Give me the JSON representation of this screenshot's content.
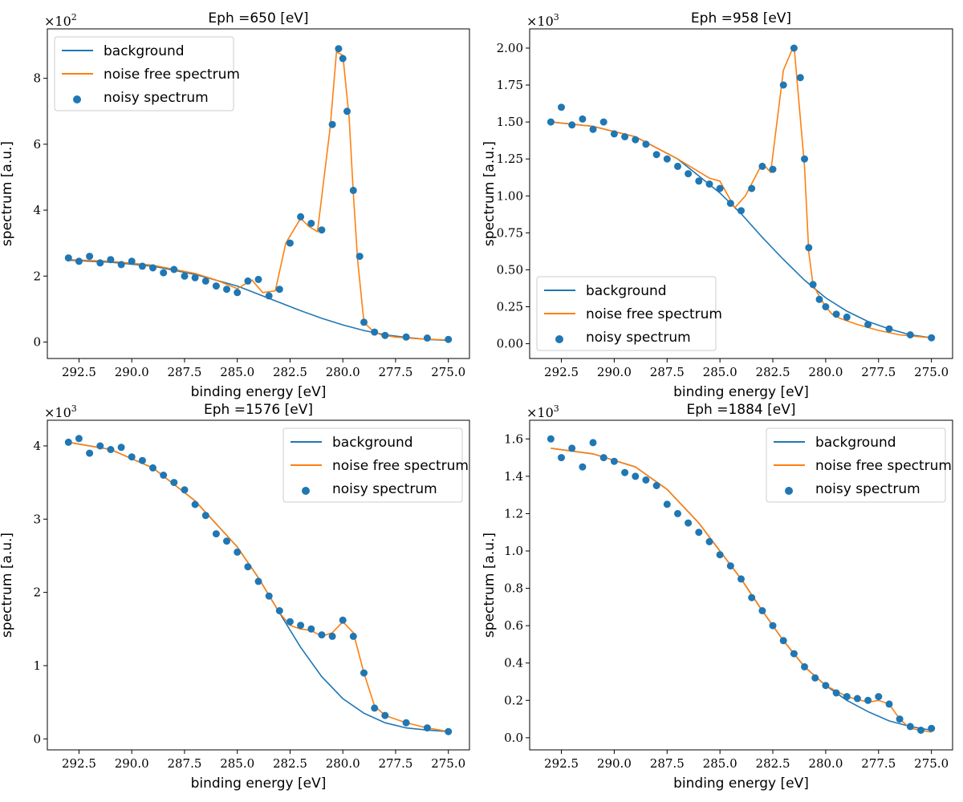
{
  "chart_data": [
    {
      "type": "line+scatter",
      "title": "Eph =650 [eV]",
      "xlabel": "binding energy [eV]",
      "ylabel": "spectrum [a.u.]",
      "multiplier_base": "×10",
      "multiplier_exp": "2",
      "xlim": [
        294.0,
        274.0
      ],
      "ylim": [
        -0.5,
        9.5
      ],
      "xticks": [
        "292.5",
        "290.0",
        "287.5",
        "285.0",
        "282.5",
        "280.0",
        "277.5",
        "275.0"
      ],
      "xtick_values": [
        292.5,
        290.0,
        287.5,
        285.0,
        282.5,
        280.0,
        277.5,
        275.0
      ],
      "yticks": [
        "0",
        "2",
        "4",
        "6",
        "8"
      ],
      "ytick_values": [
        0,
        2,
        4,
        6,
        8
      ],
      "legend": [
        "background",
        "noise free spectrum",
        "noisy spectrum"
      ],
      "legend_loc": "upper-left",
      "series": [
        {
          "name": "background",
          "color": "#1f77b4",
          "kind": "line",
          "x": [
            293.0,
            291.0,
            289.0,
            287.0,
            285.0,
            284.0,
            283.0,
            282.0,
            281.0,
            280.0,
            279.0,
            278.0,
            277.0,
            276.0,
            275.0
          ],
          "y": [
            2.48,
            2.42,
            2.3,
            2.05,
            1.7,
            1.45,
            1.2,
            0.95,
            0.72,
            0.52,
            0.35,
            0.22,
            0.14,
            0.08,
            0.05
          ]
        },
        {
          "name": "noise free spectrum",
          "color": "#ff7f0e",
          "kind": "line",
          "x": [
            293.0,
            291.0,
            289.0,
            287.0,
            286.0,
            285.0,
            284.3,
            283.8,
            283.2,
            282.7,
            282.0,
            281.6,
            281.2,
            280.6,
            280.3,
            280.0,
            279.7,
            279.5,
            279.3,
            279.0,
            278.6,
            278.2,
            277.5,
            276.5,
            275.0
          ],
          "y": [
            2.5,
            2.45,
            2.33,
            2.08,
            1.88,
            1.62,
            1.88,
            1.5,
            1.55,
            3.0,
            3.75,
            3.5,
            3.35,
            6.5,
            8.8,
            8.7,
            6.8,
            4.5,
            2.5,
            0.6,
            0.35,
            0.22,
            0.15,
            0.1,
            0.06
          ]
        },
        {
          "name": "noisy spectrum",
          "color": "#1f77b4",
          "kind": "scatter",
          "x": [
            293.0,
            292.5,
            292.0,
            291.5,
            291.0,
            290.5,
            290.0,
            289.5,
            289.0,
            288.5,
            288.0,
            287.5,
            287.0,
            286.5,
            286.0,
            285.5,
            285.0,
            284.5,
            284.0,
            283.5,
            283.0,
            282.5,
            282.0,
            281.5,
            281.0,
            280.5,
            280.2,
            280.0,
            279.8,
            279.5,
            279.2,
            279.0,
            278.5,
            278.0,
            277.0,
            276.0,
            275.0
          ],
          "y": [
            2.55,
            2.45,
            2.6,
            2.4,
            2.5,
            2.35,
            2.45,
            2.3,
            2.25,
            2.1,
            2.2,
            2.0,
            1.95,
            1.85,
            1.7,
            1.6,
            1.5,
            1.85,
            1.9,
            1.4,
            1.6,
            3.0,
            3.8,
            3.6,
            3.4,
            6.6,
            8.9,
            8.6,
            7.0,
            4.6,
            2.6,
            0.6,
            0.3,
            0.2,
            0.15,
            0.12,
            0.08
          ]
        }
      ]
    },
    {
      "type": "line+scatter",
      "title": "Eph =958 [eV]",
      "xlabel": "binding energy [eV]",
      "ylabel": "spectrum [a.u.]",
      "multiplier_base": "×10",
      "multiplier_exp": "3",
      "xlim": [
        294.0,
        274.0
      ],
      "ylim": [
        -0.1,
        2.13
      ],
      "xticks": [
        "292.5",
        "290.0",
        "287.5",
        "285.0",
        "282.5",
        "280.0",
        "277.5",
        "275.0"
      ],
      "xtick_values": [
        292.5,
        290.0,
        287.5,
        285.0,
        282.5,
        280.0,
        277.5,
        275.0
      ],
      "yticks": [
        "0.00",
        "0.25",
        "0.50",
        "0.75",
        "1.00",
        "1.25",
        "1.50",
        "1.75",
        "2.00"
      ],
      "ytick_values": [
        0.0,
        0.25,
        0.5,
        0.75,
        1.0,
        1.25,
        1.5,
        1.75,
        2.0
      ],
      "legend": [
        "background",
        "noise free spectrum",
        "noisy spectrum"
      ],
      "legend_loc": "lower-left",
      "series": [
        {
          "name": "background",
          "color": "#1f77b4",
          "kind": "line",
          "x": [
            293.0,
            291.0,
            289.0,
            287.0,
            285.0,
            284.0,
            283.0,
            282.0,
            281.0,
            280.0,
            279.0,
            278.0,
            277.0,
            276.0,
            275.0
          ],
          "y": [
            1.5,
            1.47,
            1.4,
            1.25,
            1.02,
            0.88,
            0.72,
            0.57,
            0.43,
            0.31,
            0.22,
            0.15,
            0.1,
            0.06,
            0.04
          ]
        },
        {
          "name": "noise free spectrum",
          "color": "#ff7f0e",
          "kind": "line",
          "x": [
            293.0,
            291.0,
            289.0,
            287.0,
            285.5,
            285.0,
            284.3,
            283.8,
            283.0,
            282.6,
            282.0,
            281.5,
            281.0,
            280.8,
            280.6,
            280.3,
            280.0,
            279.7,
            279.3,
            278.5,
            277.5,
            276.5,
            275.0
          ],
          "y": [
            1.5,
            1.47,
            1.4,
            1.25,
            1.12,
            1.1,
            0.92,
            1.0,
            1.22,
            1.16,
            1.85,
            2.02,
            1.2,
            0.62,
            0.4,
            0.32,
            0.25,
            0.2,
            0.17,
            0.13,
            0.09,
            0.06,
            0.04
          ]
        },
        {
          "name": "noisy spectrum",
          "color": "#1f77b4",
          "kind": "scatter",
          "x": [
            293.0,
            292.5,
            292.0,
            291.5,
            291.0,
            290.5,
            290.0,
            289.5,
            289.0,
            288.5,
            288.0,
            287.5,
            287.0,
            286.5,
            286.0,
            285.5,
            285.0,
            284.5,
            284.0,
            283.5,
            283.0,
            282.5,
            282.0,
            281.5,
            281.2,
            281.0,
            280.8,
            280.6,
            280.3,
            280.0,
            279.5,
            279.0,
            278.0,
            277.0,
            276.0,
            275.0
          ],
          "y": [
            1.5,
            1.6,
            1.48,
            1.52,
            1.45,
            1.5,
            1.42,
            1.4,
            1.38,
            1.35,
            1.28,
            1.25,
            1.2,
            1.15,
            1.1,
            1.08,
            1.05,
            0.95,
            0.9,
            1.05,
            1.2,
            1.18,
            1.75,
            2.0,
            1.8,
            1.25,
            0.65,
            0.4,
            0.3,
            0.25,
            0.2,
            0.18,
            0.13,
            0.1,
            0.06,
            0.04
          ]
        }
      ]
    },
    {
      "type": "line+scatter",
      "title": "Eph =1576 [eV]",
      "xlabel": "binding energy [eV]",
      "ylabel": "spectrum [a.u.]",
      "multiplier_base": "×10",
      "multiplier_exp": "3",
      "xlim": [
        294.0,
        274.0
      ],
      "ylim": [
        -0.15,
        4.35
      ],
      "xticks": [
        "292.5",
        "290.0",
        "287.5",
        "285.0",
        "282.5",
        "280.0",
        "277.5",
        "275.0"
      ],
      "xtick_values": [
        292.5,
        290.0,
        287.5,
        285.0,
        282.5,
        280.0,
        277.5,
        275.0
      ],
      "yticks": [
        "0",
        "1",
        "2",
        "3",
        "4"
      ],
      "ytick_values": [
        0,
        1,
        2,
        3,
        4
      ],
      "legend": [
        "background",
        "noise free spectrum",
        "noisy spectrum"
      ],
      "legend_loc": "upper-right",
      "series": [
        {
          "name": "background",
          "color": "#1f77b4",
          "kind": "line",
          "x": [
            293.0,
            291.0,
            289.0,
            287.0,
            285.0,
            284.0,
            283.0,
            282.0,
            281.0,
            280.0,
            279.0,
            278.0,
            277.0,
            276.0,
            275.0
          ],
          "y": [
            4.05,
            3.95,
            3.7,
            3.25,
            2.62,
            2.2,
            1.72,
            1.25,
            0.85,
            0.55,
            0.35,
            0.22,
            0.15,
            0.12,
            0.1
          ]
        },
        {
          "name": "noise free spectrum",
          "color": "#ff7f0e",
          "kind": "line",
          "x": [
            293.0,
            291.0,
            289.0,
            287.0,
            285.0,
            284.0,
            283.0,
            282.5,
            282.0,
            281.5,
            281.0,
            280.5,
            280.0,
            279.5,
            279.0,
            278.5,
            278.0,
            277.0,
            276.0,
            275.0
          ],
          "y": [
            4.05,
            3.95,
            3.7,
            3.25,
            2.62,
            2.2,
            1.72,
            1.55,
            1.5,
            1.48,
            1.4,
            1.45,
            1.6,
            1.45,
            0.9,
            0.45,
            0.32,
            0.22,
            0.15,
            0.1
          ]
        },
        {
          "name": "noisy spectrum",
          "color": "#1f77b4",
          "kind": "scatter",
          "x": [
            293.0,
            292.5,
            292.0,
            291.5,
            291.0,
            290.5,
            290.0,
            289.5,
            289.0,
            288.5,
            288.0,
            287.5,
            287.0,
            286.5,
            286.0,
            285.5,
            285.0,
            284.5,
            284.0,
            283.5,
            283.0,
            282.5,
            282.0,
            281.5,
            281.0,
            280.5,
            280.0,
            279.5,
            279.0,
            278.5,
            278.0,
            277.0,
            276.0,
            275.0
          ],
          "y": [
            4.05,
            4.1,
            3.9,
            4.0,
            3.95,
            3.98,
            3.85,
            3.8,
            3.7,
            3.6,
            3.5,
            3.4,
            3.2,
            3.05,
            2.8,
            2.7,
            2.55,
            2.35,
            2.15,
            1.95,
            1.75,
            1.6,
            1.55,
            1.5,
            1.42,
            1.4,
            1.62,
            1.4,
            0.9,
            0.42,
            0.32,
            0.22,
            0.15,
            0.1
          ]
        }
      ]
    },
    {
      "type": "line+scatter",
      "title": "Eph =1884 [eV]",
      "xlabel": "binding energy [eV]",
      "ylabel": "spectrum [a.u.]",
      "multiplier_base": "×10",
      "multiplier_exp": "3",
      "xlim": [
        294.0,
        274.0
      ],
      "ylim": [
        -0.065,
        1.7
      ],
      "xticks": [
        "292.5",
        "290.0",
        "287.5",
        "285.0",
        "282.5",
        "280.0",
        "277.5",
        "275.0"
      ],
      "xtick_values": [
        292.5,
        290.0,
        287.5,
        285.0,
        282.5,
        280.0,
        277.5,
        275.0
      ],
      "yticks": [
        "0.0",
        "0.2",
        "0.4",
        "0.6",
        "0.8",
        "1.0",
        "1.2",
        "1.4",
        "1.6"
      ],
      "ytick_values": [
        0.0,
        0.2,
        0.4,
        0.6,
        0.8,
        1.0,
        1.2,
        1.4,
        1.6
      ],
      "legend": [
        "background",
        "noise free spectrum",
        "noisy spectrum"
      ],
      "legend_loc": "upper-right",
      "series": [
        {
          "name": "background",
          "color": "#1f77b4",
          "kind": "line",
          "x": [
            293.0,
            291.0,
            289.0,
            287.5,
            286.0,
            285.0,
            284.0,
            283.0,
            282.0,
            281.0,
            280.0,
            279.0,
            278.0,
            277.0,
            276.0,
            275.0
          ],
          "y": [
            1.55,
            1.52,
            1.45,
            1.33,
            1.15,
            1.0,
            0.85,
            0.68,
            0.52,
            0.38,
            0.28,
            0.2,
            0.14,
            0.09,
            0.06,
            0.04
          ]
        },
        {
          "name": "noise free spectrum",
          "color": "#ff7f0e",
          "kind": "line",
          "x": [
            293.0,
            291.0,
            289.0,
            287.5,
            286.0,
            285.0,
            284.0,
            283.0,
            282.0,
            281.0,
            280.0,
            279.0,
            278.0,
            277.5,
            277.0,
            276.5,
            276.0,
            275.5,
            275.0
          ],
          "y": [
            1.55,
            1.52,
            1.45,
            1.33,
            1.15,
            1.0,
            0.85,
            0.68,
            0.52,
            0.38,
            0.28,
            0.22,
            0.19,
            0.2,
            0.18,
            0.1,
            0.05,
            0.04,
            0.03
          ]
        },
        {
          "name": "noisy spectrum",
          "color": "#1f77b4",
          "kind": "scatter",
          "x": [
            293.0,
            292.5,
            292.0,
            291.5,
            291.0,
            290.5,
            290.0,
            289.5,
            289.0,
            288.5,
            288.0,
            287.5,
            287.0,
            286.5,
            286.0,
            285.5,
            285.0,
            284.5,
            284.0,
            283.5,
            283.0,
            282.5,
            282.0,
            281.5,
            281.0,
            280.5,
            280.0,
            279.5,
            279.0,
            278.5,
            278.0,
            277.5,
            277.0,
            276.5,
            276.0,
            275.5,
            275.0
          ],
          "y": [
            1.6,
            1.5,
            1.55,
            1.45,
            1.58,
            1.5,
            1.48,
            1.42,
            1.4,
            1.38,
            1.35,
            1.25,
            1.2,
            1.15,
            1.1,
            1.05,
            0.98,
            0.92,
            0.85,
            0.75,
            0.68,
            0.6,
            0.52,
            0.45,
            0.38,
            0.32,
            0.28,
            0.24,
            0.22,
            0.21,
            0.2,
            0.22,
            0.18,
            0.1,
            0.06,
            0.04,
            0.05
          ]
        }
      ]
    }
  ]
}
